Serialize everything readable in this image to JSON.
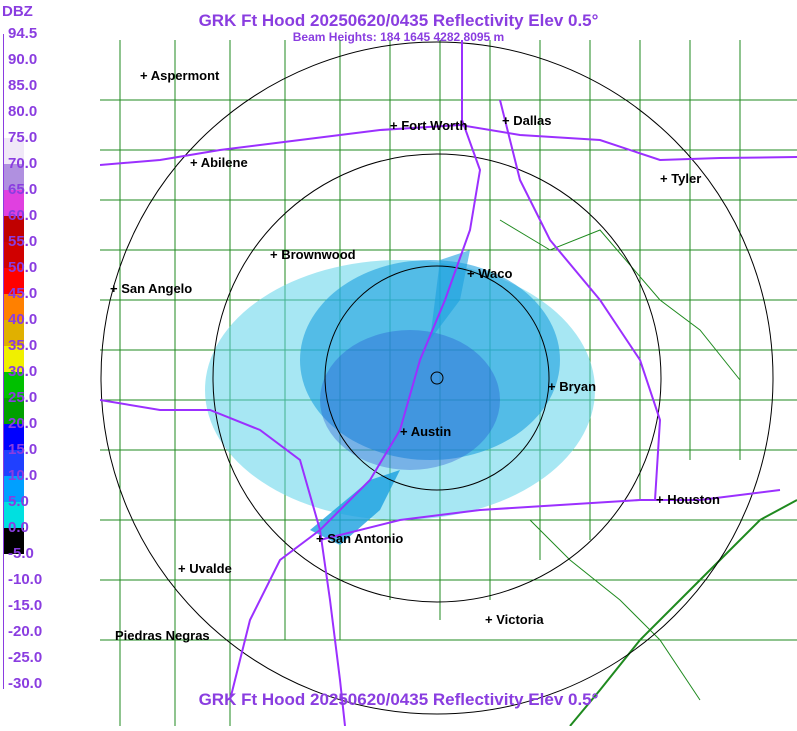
{
  "header": {
    "title": "GRK Ft Hood 20250620/0435 Reflectivity Elev 0.5°",
    "subtitle": "Beam Heights: 184 1645 4282 8095 m",
    "footer_title": "GRK Ft Hood 20250620/0435 Reflectivity Elev 0.5°"
  },
  "legend": {
    "unit": "DBZ",
    "labels": [
      "94.5",
      "90.0",
      "85.0",
      "80.0",
      "75.0",
      "70.0",
      "65.0",
      "60.0",
      "55.0",
      "50.0",
      "45.0",
      "40.0",
      "35.0",
      "30.0",
      "25.0",
      "20.0",
      "15.0",
      "10.0",
      "5.0",
      "0.0",
      "-5.0",
      "-10.0",
      "-15.0",
      "-20.0",
      "-25.0",
      "-30.0"
    ],
    "colors": [
      "#ffffff",
      "#ffffff",
      "#ffffff",
      "#ffffff",
      "#f0e8f8",
      "#b090e0",
      "#e040e0",
      "#c00000",
      "#d00000",
      "#ff0000",
      "#ff8000",
      "#e0b000",
      "#f0f000",
      "#00c000",
      "#00a000",
      "#0000ff",
      "#2040ff",
      "#00a0ff",
      "#00e0e0",
      "#000000",
      "#ffffff",
      "#ffffff",
      "#ffffff",
      "#ffffff",
      "#ffffff"
    ]
  },
  "map": {
    "cities": [
      {
        "name": "Aspermont"
      },
      {
        "name": "Abilene"
      },
      {
        "name": "Fort Worth"
      },
      {
        "name": "Dallas"
      },
      {
        "name": "Tyler"
      },
      {
        "name": "Brownwood"
      },
      {
        "name": "Waco"
      },
      {
        "name": "San Angelo"
      },
      {
        "name": "Bryan"
      },
      {
        "name": "Austin"
      },
      {
        "name": "Houston"
      },
      {
        "name": "San Antonio"
      },
      {
        "name": "Uvalde"
      },
      {
        "name": "Victoria"
      },
      {
        "name": "Piedras Negras"
      }
    ],
    "colors": {
      "county_lines": "#1f8a1f",
      "highways": "#9b30ff",
      "range_rings": "#000000",
      "echo_light": "#5fd3ea",
      "echo_mid": "#1aa0e0",
      "echo_dark": "#1f4fd0"
    }
  }
}
